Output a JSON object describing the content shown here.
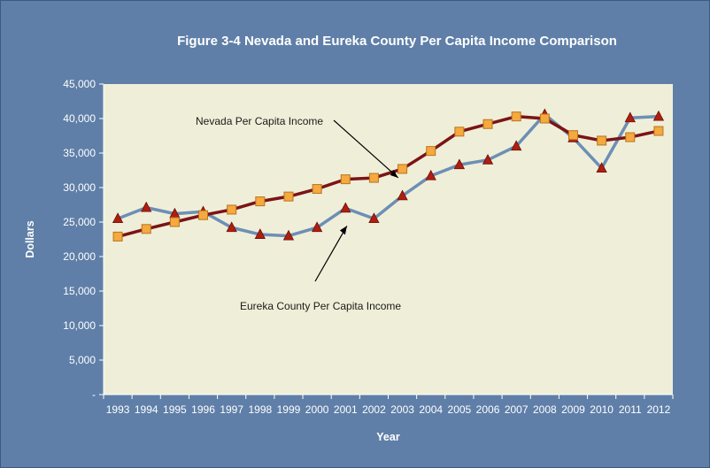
{
  "chart_data": {
    "type": "line",
    "title": "Figure 3-4 Nevada and Eureka County Per Capita Income Comparison",
    "xlabel": "Year",
    "ylabel": "Dollars",
    "ylim": [
      0,
      45000
    ],
    "yticks": [
      {
        "value": 0,
        "label": "-"
      },
      {
        "value": 5000,
        "label": "5,000"
      },
      {
        "value": 10000,
        "label": "10,000"
      },
      {
        "value": 15000,
        "label": "15,000"
      },
      {
        "value": 20000,
        "label": "20,000"
      },
      {
        "value": 25000,
        "label": "25,000"
      },
      {
        "value": 30000,
        "label": "30,000"
      },
      {
        "value": 35000,
        "label": "35,000"
      },
      {
        "value": 40000,
        "label": "40,000"
      },
      {
        "value": 45000,
        "label": "45,000"
      }
    ],
    "categories": [
      "1993",
      "1994",
      "1995",
      "1996",
      "1997",
      "1998",
      "1999",
      "2000",
      "2001",
      "2002",
      "2003",
      "2004",
      "2005",
      "2006",
      "2007",
      "2008",
      "2009",
      "2010",
      "2011",
      "2012"
    ],
    "series": [
      {
        "name": "Nevada Per Capita Income",
        "color": "#7b1416",
        "marker": "square",
        "marker_color": "#f5a93e",
        "values": [
          22900,
          24000,
          25000,
          26000,
          26800,
          28000,
          28700,
          29800,
          31200,
          31400,
          32700,
          35300,
          38100,
          39200,
          40300,
          40000,
          37600,
          36800,
          37300,
          38200
        ]
      },
      {
        "name": "Eureka County Per Capita Income",
        "color": "#6d8fb5",
        "marker": "triangle",
        "marker_color": "#b01e10",
        "values": [
          25500,
          27100,
          26200,
          26500,
          24200,
          23200,
          23000,
          24200,
          27000,
          25500,
          28800,
          31700,
          33300,
          34000,
          36000,
          40600,
          37200,
          32800,
          40100,
          40300
        ]
      }
    ],
    "annotations": [
      {
        "text": "Nevada Per Capita Income",
        "series": 0
      },
      {
        "text": "Eureka County Per Capita Income",
        "series": 1
      }
    ],
    "grid": false,
    "legend": "none"
  }
}
